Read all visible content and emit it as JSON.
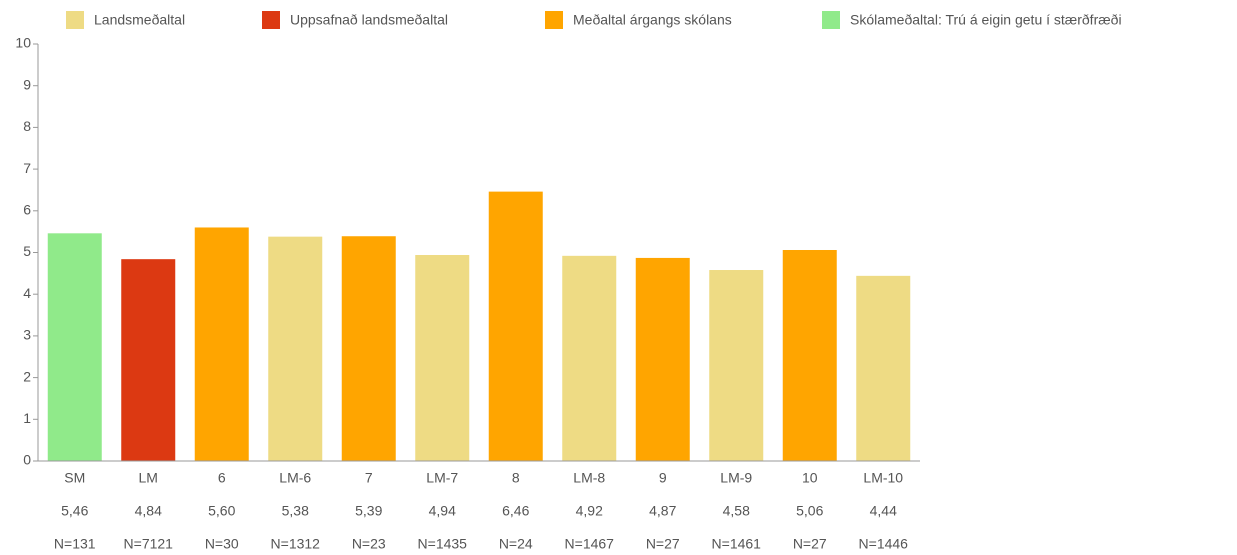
{
  "chart_data": {
    "type": "bar",
    "categories": [
      "SM",
      "LM",
      "6",
      "LM-6",
      "7",
      "LM-7",
      "8",
      "LM-8",
      "9",
      "LM-9",
      "10",
      "LM-10"
    ],
    "series": [
      {
        "name": "Landsmeðaltal",
        "color": "#eedb84",
        "values": [
          null,
          null,
          null,
          5.38,
          null,
          4.94,
          null,
          4.92,
          null,
          4.58,
          null,
          4.44
        ]
      },
      {
        "name": "Uppsafnað landsmeðaltal",
        "color": "#dc3912",
        "values": [
          null,
          4.84,
          null,
          null,
          null,
          null,
          null,
          null,
          null,
          null,
          null,
          null
        ]
      },
      {
        "name": "Meðaltal árgangs skólans",
        "color": "#ffa500",
        "values": [
          null,
          null,
          5.6,
          null,
          5.39,
          null,
          6.46,
          null,
          4.87,
          null,
          5.06,
          null
        ]
      },
      {
        "name": "Skólameðaltal: Trú á eigin getu í stærðfræði",
        "color": "#90ea8a",
        "values": [
          5.46,
          null,
          null,
          null,
          null,
          null,
          null,
          null,
          null,
          null,
          null,
          null
        ]
      }
    ],
    "value_labels": [
      "5,46",
      "4,84",
      "5,60",
      "5,38",
      "5,39",
      "4,94",
      "6,46",
      "4,92",
      "4,87",
      "4,58",
      "5,06",
      "4,44"
    ],
    "n_labels": [
      "N=131",
      "N=7121",
      "N=30",
      "N=1312",
      "N=23",
      "N=1435",
      "N=24",
      "N=1467",
      "N=27",
      "N=1461",
      "N=27",
      "N=1446"
    ],
    "ylim": [
      0,
      10
    ],
    "yticks": [
      0,
      1,
      2,
      3,
      4,
      5,
      6,
      7,
      8,
      9,
      10
    ],
    "legend": "top"
  }
}
